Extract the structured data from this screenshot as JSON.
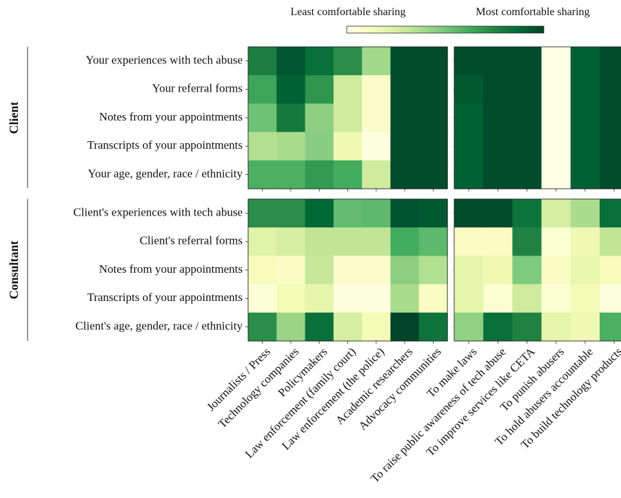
{
  "colorbar": {
    "low_label": "Least comfortable sharing",
    "high_label": "Most comfortable sharing",
    "colors": [
      "#ffffe5",
      "#f7fcb9",
      "#d9f0a3",
      "#addd8e",
      "#78c679",
      "#41ab5d",
      "#238443",
      "#006837",
      "#004529"
    ]
  },
  "chart_data": {
    "type": "heatmap",
    "scale": {
      "min": 0,
      "max": 1,
      "meaning": "comfort sharing (0 = least, 1 = most)"
    },
    "groups": [
      "Client",
      "Consultant"
    ],
    "columns_left": [
      "Journalists / Press",
      "Technology companies",
      "Policymakers",
      "Law enforcement (family court)",
      "Law enforcement (the police)",
      "Academic researchers",
      "Advocacy communities"
    ],
    "columns_right": [
      "To make laws",
      "To raise public awareness of tech abuse",
      "To improve services like CETA",
      "To punish abusers",
      "To hold abusers accountable",
      "To build technology products"
    ],
    "panels": [
      {
        "group": "Client",
        "rows": [
          "Your experiences with tech abuse",
          "Your referral forms",
          "Notes from your appointments",
          "Transcripts of your appointments",
          "Your age, gender, race / ethnicity"
        ],
        "left_values": [
          [
            0.78,
            0.94,
            0.84,
            0.72,
            0.4,
            0.98,
            0.98
          ],
          [
            0.64,
            0.9,
            0.7,
            0.28,
            0.08,
            0.98,
            0.98
          ],
          [
            0.52,
            0.8,
            0.45,
            0.28,
            0.08,
            0.98,
            0.98
          ],
          [
            0.36,
            0.38,
            0.46,
            0.16,
            0.02,
            0.98,
            0.98
          ],
          [
            0.6,
            0.6,
            0.68,
            0.62,
            0.28,
            0.98,
            0.98
          ]
        ],
        "right_values": [
          [
            0.97,
            0.98,
            0.98,
            0.0,
            0.9,
            0.98
          ],
          [
            0.93,
            0.98,
            0.98,
            0.0,
            0.9,
            0.98
          ],
          [
            0.9,
            0.98,
            0.98,
            0.0,
            0.9,
            0.98
          ],
          [
            0.9,
            0.98,
            0.98,
            0.0,
            0.9,
            0.98
          ],
          [
            0.9,
            0.98,
            0.98,
            0.0,
            0.9,
            0.98
          ]
        ]
      },
      {
        "group": "Consultant",
        "rows": [
          "Client's experiences with tech abuse",
          "Client's referral forms",
          "Notes from your appointments",
          "Transcripts of your appointments",
          "Client's age, gender, race / ethnicity"
        ],
        "left_values": [
          [
            0.72,
            0.72,
            0.88,
            0.55,
            0.56,
            0.95,
            0.93
          ],
          [
            0.22,
            0.26,
            0.32,
            0.32,
            0.32,
            0.62,
            0.56
          ],
          [
            0.12,
            0.1,
            0.3,
            0.08,
            0.08,
            0.45,
            0.36
          ],
          [
            0.04,
            0.14,
            0.2,
            0.02,
            0.02,
            0.38,
            0.1
          ],
          [
            0.72,
            0.42,
            0.84,
            0.26,
            0.14,
            1.0,
            0.82
          ]
        ],
        "right_values": [
          [
            0.98,
            0.98,
            0.82,
            0.26,
            0.38,
            0.84
          ],
          [
            0.1,
            0.1,
            0.76,
            0.06,
            0.16,
            0.32
          ],
          [
            0.2,
            0.16,
            0.48,
            0.1,
            0.18,
            0.12
          ],
          [
            0.2,
            0.06,
            0.28,
            0.06,
            0.14,
            0.02
          ],
          [
            0.44,
            0.84,
            0.76,
            0.2,
            0.16,
            0.6
          ]
        ]
      }
    ]
  }
}
